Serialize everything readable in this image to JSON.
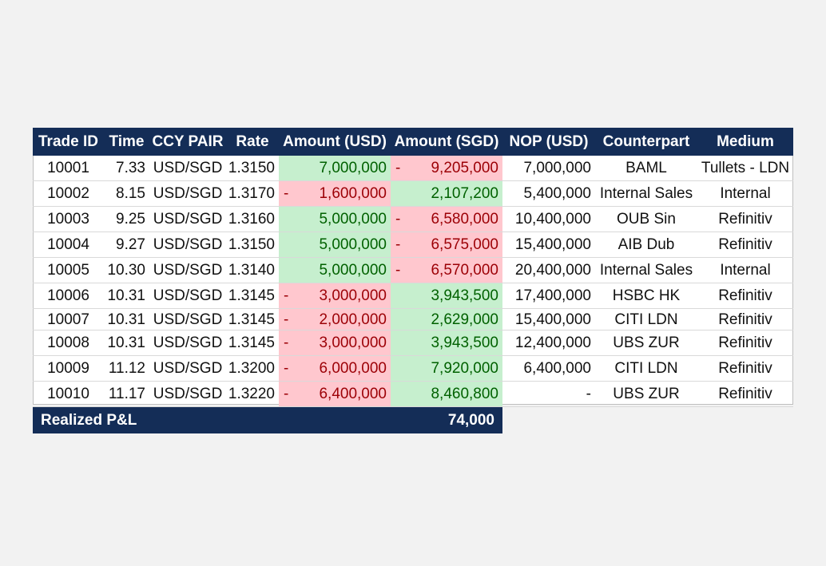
{
  "table": {
    "headers": [
      "Trade ID",
      "Time",
      "CCY PAIR",
      "Rate",
      "Amount (USD)",
      "Amount (SGD)",
      "NOP (USD)",
      "Counterpart",
      "Medium"
    ],
    "rows": [
      [
        "10001",
        "7.33",
        "USD/SGD",
        "1.3150",
        {
          "value": "7,000,000"
        },
        {
          "sign": "-",
          "value": "9,205,000"
        },
        "7,000,000",
        "BAML",
        "Tullets - LDN"
      ],
      [
        "10002",
        "8.15",
        "USD/SGD",
        "1.3170",
        {
          "sign": "-",
          "value": "1,600,000"
        },
        {
          "value": "2,107,200"
        },
        "5,400,000",
        "Internal Sales",
        "Internal"
      ],
      [
        "10003",
        "9.25",
        "USD/SGD",
        "1.3160",
        {
          "value": "5,000,000"
        },
        {
          "sign": "-",
          "value": "6,580,000"
        },
        "10,400,000",
        "OUB Sin",
        "Refinitiv"
      ],
      [
        "10004",
        "9.27",
        "USD/SGD",
        "1.3150",
        {
          "value": "5,000,000"
        },
        {
          "sign": "-",
          "value": "6,575,000"
        },
        "15,400,000",
        "AIB Dub",
        "Refinitiv"
      ],
      [
        "10005",
        "10.30",
        "USD/SGD",
        "1.3140",
        {
          "value": "5,000,000"
        },
        {
          "sign": "-",
          "value": "6,570,000"
        },
        "20,400,000",
        "Internal Sales",
        "Internal"
      ],
      [
        "10006",
        "10.31",
        "USD/SGD",
        "1.3145",
        {
          "sign": "-",
          "value": "3,000,000"
        },
        {
          "value": "3,943,500"
        },
        "17,400,000",
        "HSBC HK",
        "Refinitiv"
      ],
      [
        "10007",
        "10.31",
        "USD/SGD",
        "1.3145",
        {
          "sign": "-",
          "value": "2,000,000"
        },
        {
          "value": "2,629,000"
        },
        "15,400,000",
        "CITI LDN",
        "Refinitiv"
      ],
      [
        "10008",
        "10.31",
        "USD/SGD",
        "1.3145",
        {
          "sign": "-",
          "value": "3,000,000"
        },
        {
          "value": "3,943,500"
        },
        "12,400,000",
        "UBS ZUR",
        "Refinitiv"
      ],
      [
        "10009",
        "11.12",
        "USD/SGD",
        "1.3200",
        {
          "sign": "-",
          "value": "6,000,000"
        },
        {
          "value": "7,920,000"
        },
        "6,400,000",
        "CITI LDN",
        "Refinitiv"
      ],
      [
        "10010",
        "11.17",
        "USD/SGD",
        "1.3220",
        {
          "sign": "-",
          "value": "6,400,000"
        },
        {
          "value": "8,460,800"
        },
        "-",
        "UBS ZUR",
        "Refinitiv"
      ]
    ],
    "footer": {
      "label": "Realized P&L",
      "value": "74,000"
    }
  }
}
